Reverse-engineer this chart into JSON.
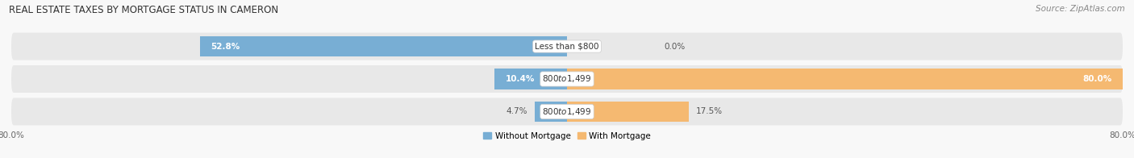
{
  "title": "REAL ESTATE TAXES BY MORTGAGE STATUS IN CAMERON",
  "source": "Source: ZipAtlas.com",
  "rows": [
    {
      "label": "Less than $800",
      "without_pct": 52.8,
      "with_pct": 0.0,
      "without_label": "52.8%",
      "with_label": "0.0%"
    },
    {
      "label": "$800 to $1,499",
      "without_pct": 10.4,
      "with_pct": 80.0,
      "without_label": "10.4%",
      "with_label": "80.0%"
    },
    {
      "label": "$800 to $1,499",
      "without_pct": 4.7,
      "with_pct": 17.5,
      "without_label": "4.7%",
      "with_label": "17.5%"
    }
  ],
  "xlim": [
    -80.0,
    80.0
  ],
  "xtick_left_label": "80.0%",
  "xtick_right_label": "80.0%",
  "color_without": "#78aed4",
  "color_with": "#f5b971",
  "legend_without": "Without Mortgage",
  "legend_with": "With Mortgage",
  "bar_height": 0.62,
  "background_bar": "#e8e8e8",
  "background_fig": "#f8f8f8",
  "title_fontsize": 8.5,
  "source_fontsize": 7.5,
  "label_fontsize": 7.5,
  "pct_fontsize": 7.5,
  "inside_label_fontsize": 7.5,
  "tick_fontsize": 7.5
}
